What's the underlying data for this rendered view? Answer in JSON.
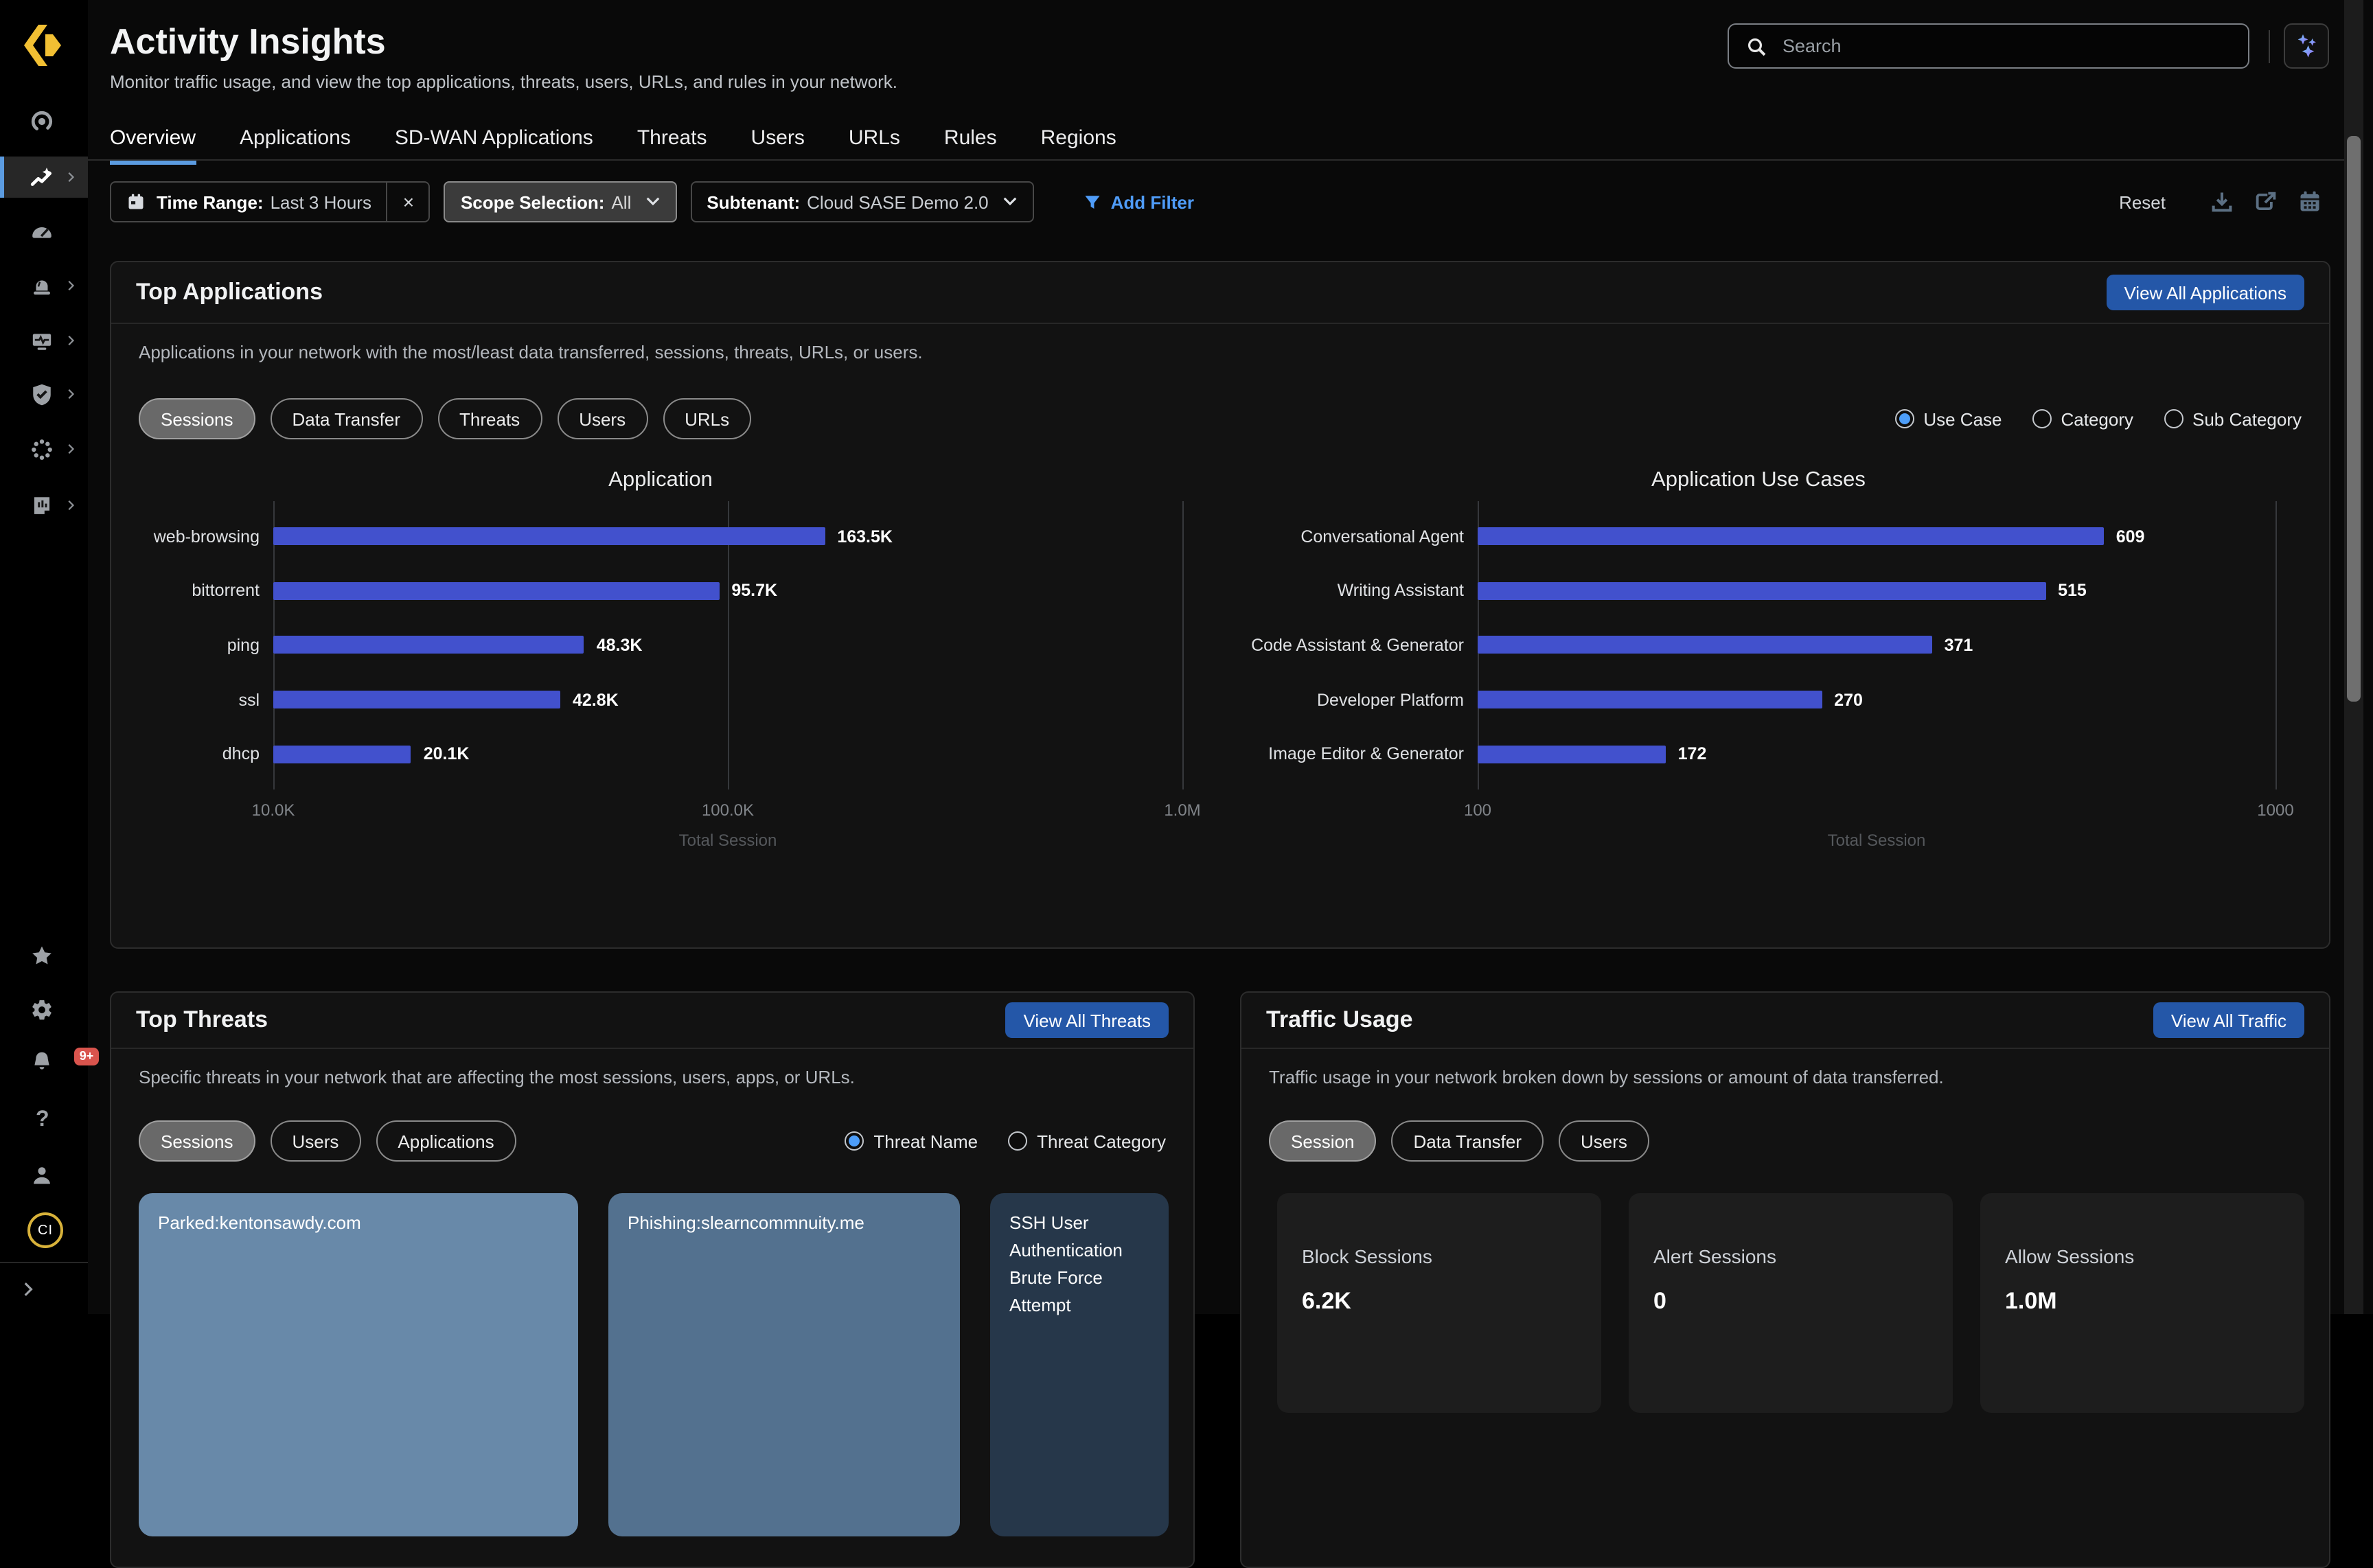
{
  "header": {
    "title": "Activity Insights",
    "subtitle": "Monitor traffic usage, and view the top applications, threats, users, URLs, and rules in your network.",
    "search_placeholder": "Search"
  },
  "tabs": {
    "items": [
      "Overview",
      "Applications",
      "SD-WAN Applications",
      "Threats",
      "Users",
      "URLs",
      "Rules",
      "Regions"
    ],
    "active_index": 0
  },
  "filters": {
    "chips": [
      {
        "label": "Time Range:",
        "value": "Last 3 Hours",
        "icon": "calendar-small-icon",
        "removable": true
      },
      {
        "label": "Scope Selection:",
        "value": "All",
        "dropdown": true,
        "variant": "light"
      },
      {
        "label": "Subtenant:",
        "value": "Cloud SASE Demo 2.0",
        "dropdown": true
      }
    ],
    "add_filter": "Add Filter",
    "reset": "Reset",
    "action_icons": [
      "download-icon",
      "export-icon",
      "calendar-icon"
    ]
  },
  "sidebar": {
    "top_items": [
      {
        "icon": "scope-icon",
        "chevron": false,
        "active": false
      },
      {
        "icon": "activity-insights-icon",
        "chevron": true,
        "active": true
      },
      {
        "icon": "dashboard-gauge-icon",
        "chevron": false,
        "active": false
      },
      {
        "icon": "alerts-icon",
        "chevron": true,
        "active": false
      },
      {
        "icon": "device-health-icon",
        "chevron": true,
        "active": false
      },
      {
        "icon": "security-shield-icon",
        "chevron": true,
        "active": false
      },
      {
        "icon": "workflows-icon",
        "chevron": true,
        "active": false
      },
      {
        "icon": "reports-icon",
        "chevron": true,
        "active": false
      }
    ],
    "bottom_items": [
      {
        "icon": "favorites-star-icon"
      },
      {
        "icon": "settings-gear-icon"
      },
      {
        "icon": "notifications-bell-icon",
        "badge": "9+"
      },
      {
        "icon": "help-icon"
      },
      {
        "icon": "user-icon"
      },
      {
        "icon": "avatar",
        "label": "CI"
      }
    ]
  },
  "panels": {
    "top_applications": {
      "title": "Top Applications",
      "view_all": "View All Applications",
      "description": "Applications in your network with the most/least data transferred, sessions, threats, URLs, or users.",
      "toggles": {
        "options": [
          "Sessions",
          "Data Transfer",
          "Threats",
          "Users",
          "URLs"
        ],
        "active": 0
      },
      "radio_group": {
        "options": [
          "Use Case",
          "Category",
          "Sub Category"
        ],
        "selected": 0
      }
    },
    "top_threats": {
      "title": "Top Threats",
      "view_all": "View All Threats",
      "description": "Specific threats in your network that are affecting the most sessions, users, apps, or URLs.",
      "toggles": {
        "options": [
          "Sessions",
          "Users",
          "Applications"
        ],
        "active": 0
      },
      "radio_group": {
        "options": [
          "Threat Name",
          "Threat Category"
        ],
        "selected": 0
      },
      "treemap": [
        {
          "label": "Parked:kentonsawdy.com",
          "color": "#6889a9"
        },
        {
          "label": "Phishing:slearncommnuity.me",
          "color": "#53718f"
        },
        {
          "label": "SSH User Authentication Brute Force Attempt",
          "color": "#26374a"
        }
      ]
    },
    "traffic_usage": {
      "title": "Traffic Usage",
      "view_all": "View All Traffic",
      "description": "Traffic usage in your network broken down by sessions or amount of data transferred.",
      "toggles": {
        "options": [
          "Session",
          "Data Transfer",
          "Users"
        ],
        "active": 0
      },
      "stats": [
        {
          "label": "Block Sessions",
          "value": "6.2K"
        },
        {
          "label": "Alert Sessions",
          "value": "0"
        },
        {
          "label": "Allow Sessions",
          "value": "1.0M"
        }
      ]
    }
  },
  "chart_data": [
    {
      "type": "bar",
      "orientation": "horizontal",
      "title": "Application",
      "categories": [
        "web-browsing",
        "bittorrent",
        "ping",
        "ssl",
        "dhcp"
      ],
      "values": [
        163500,
        95700,
        48300,
        42800,
        20100
      ],
      "value_labels": [
        "163.5K",
        "95.7K",
        "48.3K",
        "42.8K",
        "20.1K"
      ],
      "xlabel": "Total Session",
      "xscale": "log",
      "xlim": [
        10000,
        1000000
      ],
      "xticks": [
        {
          "v": 10000,
          "label": "10.0K"
        },
        {
          "v": 100000,
          "label": "100.0K"
        },
        {
          "v": 1000000,
          "label": "1.0M"
        }
      ],
      "grid": "vertical-at-ticks",
      "legend": "none"
    },
    {
      "type": "bar",
      "orientation": "horizontal",
      "title": "Application Use Cases",
      "categories": [
        "Conversational Agent",
        "Writing Assistant",
        "Code Assistant & Generator",
        "Developer Platform",
        "Image Editor & Generator"
      ],
      "values": [
        609,
        515,
        371,
        270,
        172
      ],
      "value_labels": [
        "609",
        "515",
        "371",
        "270",
        "172"
      ],
      "xlabel": "Total Session",
      "xscale": "log",
      "xlim": [
        100,
        1000
      ],
      "xticks": [
        {
          "v": 100,
          "label": "100"
        },
        {
          "v": 1000,
          "label": "1000"
        }
      ],
      "grid": "vertical-at-ticks",
      "legend": "none"
    }
  ],
  "colors": {
    "accent_blue": "#2457a8",
    "tab_underline_blue": "#5b9be0",
    "bar_indigo": "#4251cd",
    "radio_blue": "#4d9efa",
    "link_blue": "#4f9cf8",
    "badge_red": "#d9544d",
    "logo_yellow": "#f2c033"
  }
}
